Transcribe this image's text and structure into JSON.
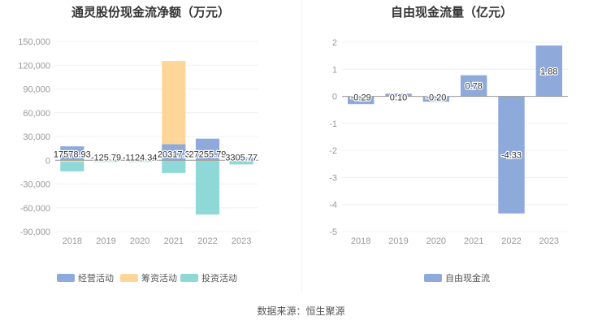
{
  "source": "数据来源：恒生聚源",
  "chart_data": [
    {
      "type": "bar",
      "stacked": true,
      "title": "通灵股份现金流净额（万元）",
      "categories": [
        "2018",
        "2019",
        "2020",
        "2021",
        "2022",
        "2023"
      ],
      "ylim": [
        -90000,
        150000
      ],
      "yticks": [
        150000,
        120000,
        90000,
        60000,
        30000,
        0,
        -30000,
        -60000,
        -90000
      ],
      "ytick_labels": [
        "150,000",
        "120,000",
        "90,000",
        "60,000",
        "30,000",
        "0",
        "-30,000",
        "-60,000",
        "-90,000"
      ],
      "series": [
        {
          "name": "经营活动",
          "color": "#8eaadb",
          "values": [
            17578.93,
            -125.79,
            -1124.34,
            20317.3,
            27255.79,
            3305.77
          ]
        },
        {
          "name": "筹资活动",
          "color": "#ffd699",
          "values": [
            -2000,
            300,
            200,
            105000,
            -500,
            -300
          ]
        },
        {
          "name": "投资活动",
          "color": "#8ed8d8",
          "values": [
            -12000,
            -2000,
            -1000,
            -16000,
            -68000,
            -5000
          ]
        }
      ],
      "data_labels": [
        "17578.93",
        "-125.79",
        "-1124.34",
        "20317.3",
        "27255.79",
        "3305.77"
      ],
      "legend": "bottom",
      "grid": true
    },
    {
      "type": "bar",
      "title": "自由现金流量（亿元）",
      "categories": [
        "2018",
        "2019",
        "2020",
        "2021",
        "2022",
        "2023"
      ],
      "ylim": [
        -5,
        2
      ],
      "yticks": [
        2,
        1,
        0,
        -1,
        -2,
        -3,
        -4,
        -5
      ],
      "ytick_labels": [
        "2",
        "1",
        "0",
        "-1",
        "-2",
        "-3",
        "-4",
        "-5"
      ],
      "series": [
        {
          "name": "自由现金流",
          "color": "#8eaadb",
          "values": [
            -0.29,
            0.1,
            -0.2,
            0.78,
            -4.33,
            1.88
          ]
        }
      ],
      "data_labels": [
        "-0.29",
        "0.10",
        "-0.20",
        "0.78",
        "-4.33",
        "1.88"
      ],
      "legend": "bottom",
      "grid": true
    }
  ]
}
